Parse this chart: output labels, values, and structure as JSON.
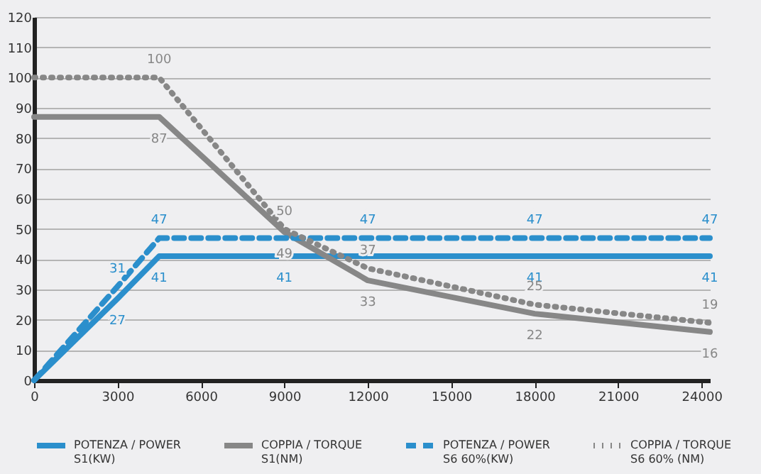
{
  "chart_data": {
    "type": "line",
    "xlim": [
      0,
      24300
    ],
    "xticks": [
      0,
      3000,
      6000,
      9000,
      12000,
      15000,
      18000,
      21000,
      24000
    ],
    "ylim": [
      0,
      120
    ],
    "yticks": [
      0,
      10,
      20,
      30,
      40,
      50,
      60,
      70,
      80,
      90,
      100,
      110,
      120
    ],
    "grid": "y",
    "legend": "bottom",
    "marker": "none",
    "series": [
      {
        "name": "POTENZA / POWER\nS1(KW)",
        "color": "#2b8fcc",
        "line_style": "solid",
        "x": [
          0,
          3000,
          4500,
          9000,
          18000,
          24300
        ],
        "values": [
          0,
          27,
          41,
          41,
          41,
          41
        ],
        "value_labels": [
          null,
          "27",
          "41",
          "41",
          "41",
          "41"
        ]
      },
      {
        "name": "COPPIA / TORQUE\nS1(NM)",
        "color": "#878787",
        "line_style": "solid",
        "x": [
          0,
          4500,
          9000,
          12000,
          18000,
          24300
        ],
        "values": [
          87,
          87,
          49,
          33,
          22,
          16
        ],
        "value_labels": [
          null,
          "87",
          "49",
          "33",
          "22",
          "16"
        ]
      },
      {
        "name": "POTENZA / POWER\nS6 60%(KW)",
        "color": "#2b8fcc",
        "line_style": "dashed",
        "x": [
          0,
          3000,
          4500,
          12000,
          18000,
          24300
        ],
        "values": [
          0,
          31,
          47,
          47,
          47,
          47
        ],
        "value_labels": [
          null,
          "31",
          "47",
          "47",
          "47",
          "47"
        ]
      },
      {
        "name": "COPPIA / TORQUE\nS6 60% (NM)",
        "color": "#878787",
        "line_style": "dotted",
        "x": [
          0,
          4500,
          9000,
          12000,
          18000,
          24300
        ],
        "values": [
          100,
          100,
          50,
          37,
          25,
          19
        ],
        "value_labels": [
          null,
          "100",
          "50",
          "37",
          "25",
          "19"
        ]
      }
    ]
  }
}
